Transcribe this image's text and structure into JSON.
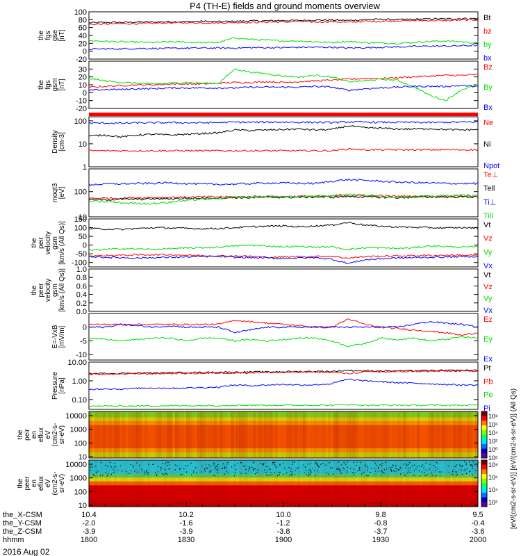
{
  "title": "P4 (TH-E) fields and ground moments overview",
  "date": "2016 Aug 02",
  "xaxis": {
    "tick_labels": [
      "1800",
      "1830",
      "1900",
      "1930",
      "2000"
    ],
    "rows": [
      {
        "label": "the_X-CSM",
        "values": [
          "10.4",
          "10.2",
          "10.0",
          "9.8",
          "9.5"
        ]
      },
      {
        "label": "the_Y-CSM",
        "values": [
          "-2.0",
          "-1.6",
          "-1.2",
          "-0.8",
          "-0.4"
        ]
      },
      {
        "label": "the_Z-CSM",
        "values": [
          "-3.9",
          "-3.9",
          "-3.8",
          "-3.7",
          "-3.6"
        ]
      },
      {
        "label": "hhmm",
        "values": [
          "1800",
          "1830",
          "1900",
          "1930",
          "2000"
        ]
      }
    ]
  },
  "colorbar": {
    "label": "[eV/(cm2-s-sr-eV)] [eV/(cm2-s-sr-eV)] (All Qs)",
    "ion_ticks": [
      "10⁸",
      "10⁶",
      "10⁴",
      "10²",
      "10⁰",
      "10²"
    ],
    "electron_ticks": [
      "10⁸",
      "10⁶",
      "10⁴",
      "10²"
    ]
  },
  "colors": {
    "black": "#000000",
    "red": "#ff0000",
    "green": "#00dd00",
    "blue": "#0000ff"
  },
  "chart_data": [
    {
      "type": "line",
      "ylabel": [
        "the",
        "fgs",
        "gse",
        "[nT]"
      ],
      "ylim": [
        -20,
        100
      ],
      "ticks": [
        100,
        80,
        60,
        40,
        20,
        0,
        -20
      ],
      "series": [
        {
          "name": "Bt",
          "color": "#000000",
          "values": [
            72,
            73,
            73,
            74,
            74,
            75,
            75,
            76,
            75,
            76,
            77,
            77,
            78,
            78,
            79,
            79,
            78,
            80,
            81,
            80,
            81,
            82,
            82,
            83,
            83
          ]
        },
        {
          "name": "bz",
          "color": "#ff0000",
          "values": [
            68,
            69,
            70,
            70,
            71,
            72,
            72,
            72,
            72,
            73,
            73,
            74,
            74,
            75,
            74,
            75,
            73,
            76,
            76,
            77,
            78,
            78,
            78,
            79,
            80
          ]
        },
        {
          "name": "by",
          "color": "#00dd00",
          "values": [
            27,
            25,
            24,
            23,
            22,
            24,
            23,
            22,
            22,
            34,
            30,
            28,
            26,
            26,
            24,
            22,
            25,
            22,
            21,
            20,
            22,
            25,
            26,
            24,
            20
          ]
        },
        {
          "name": "bx",
          "color": "#0000ff",
          "values": [
            5,
            6,
            6,
            7,
            7,
            7,
            8,
            8,
            8,
            8,
            9,
            9,
            9,
            10,
            10,
            10,
            8,
            9,
            10,
            11,
            12,
            13,
            13,
            14,
            15
          ]
        }
      ]
    },
    {
      "type": "line",
      "ylabel": [
        "the",
        "fgs",
        "gsm",
        "[nT]"
      ],
      "ylim": [
        -20,
        40
      ],
      "ticks": [
        30,
        20,
        10,
        0,
        -10,
        -20
      ],
      "series": [
        {
          "name": "Bz",
          "color": "#ff0000",
          "values": [
            7,
            8,
            9,
            10,
            10,
            11,
            11,
            11,
            12,
            13,
            13,
            14,
            13,
            14,
            15,
            16,
            17,
            18,
            18,
            19,
            20,
            21,
            22,
            22,
            23
          ]
        },
        {
          "name": "By",
          "color": "#00dd00",
          "values": [
            18,
            15,
            13,
            12,
            11,
            12,
            13,
            12,
            12,
            30,
            26,
            24,
            21,
            20,
            22,
            20,
            14,
            15,
            17,
            16,
            8,
            -3,
            -10,
            4,
            10
          ]
        },
        {
          "name": "Bx",
          "color": "#0000ff",
          "values": [
            3,
            4,
            4,
            5,
            5,
            6,
            6,
            6,
            6,
            6,
            7,
            7,
            7,
            7,
            8,
            7,
            3,
            5,
            6,
            7,
            8,
            8,
            8,
            9,
            8
          ]
        }
      ]
    },
    {
      "type": "line",
      "ylabel": [
        "Density",
        "[cm-3]"
      ],
      "ylim": [
        1,
        150
      ],
      "scale": "log",
      "ticks": [
        100,
        10,
        1
      ],
      "series": [
        {
          "name": "Ne",
          "color": "#ff0000",
          "values": [
            5,
            5,
            5,
            5,
            5,
            5,
            5,
            5,
            5,
            5,
            5,
            5,
            5,
            5,
            5,
            5,
            6,
            5.5,
            5.5,
            5.5,
            5.5,
            5.5,
            5.5,
            5.5,
            5.5
          ]
        },
        {
          "name": "Ni",
          "color": "#000000",
          "values": [
            22,
            24,
            20,
            24,
            26,
            24,
            26,
            28,
            30,
            40,
            38,
            40,
            42,
            44,
            40,
            42,
            60,
            50,
            48,
            44,
            44,
            46,
            42,
            40,
            42
          ]
        },
        {
          "name": "Npot",
          "color": "#0000ff",
          "values": [
            80,
            80,
            78,
            82,
            82,
            84,
            82,
            82,
            84,
            88,
            86,
            88,
            88,
            86,
            86,
            84,
            90,
            88,
            86,
            86,
            86,
            84,
            86,
            88,
            90
          ]
        }
      ]
    },
    {
      "type": "line",
      "ylabel": [
        "moqt3",
        "[eV]"
      ],
      "ylim": [
        10,
        800
      ],
      "scale": "log",
      "ticks": [
        100,
        10
      ],
      "series": [
        {
          "name": "Te⊥",
          "color": "#ff0000",
          "values": [
            55,
            55,
            56,
            58,
            58,
            60,
            60,
            62,
            62,
            62,
            64,
            64,
            64,
            65,
            65,
            66,
            70,
            68,
            68,
            66,
            65,
            65,
            66,
            67,
            68
          ]
        },
        {
          "name": "Tell",
          "color": "#000000",
          "values": [
            48,
            48,
            50,
            50,
            52,
            52,
            54,
            55,
            56,
            58,
            58,
            60,
            60,
            60,
            62,
            60,
            65,
            62,
            60,
            58,
            60,
            62,
            62,
            62,
            62
          ]
        },
        {
          "name": "Ti⊥",
          "color": "#0000ff",
          "values": [
            190,
            200,
            205,
            210,
            215,
            225,
            210,
            200,
            195,
            200,
            210,
            220,
            220,
            215,
            210,
            260,
            300,
            280,
            260,
            240,
            230,
            220,
            215,
            210,
            210
          ]
        },
        {
          "name": "Till",
          "color": "#00dd00",
          "values": [
            42,
            40,
            36,
            34,
            34,
            38,
            46,
            50,
            55,
            60,
            62,
            65,
            62,
            65,
            66,
            72,
            80,
            72,
            66,
            62,
            64,
            66,
            70,
            72,
            70
          ]
        }
      ]
    },
    {
      "type": "line",
      "ylabel": [
        "the",
        "peir",
        "velocity",
        "gsm",
        "[km/s (All Qs)]"
      ],
      "ylim": [
        -125,
        150
      ],
      "ticks": [
        150,
        100,
        50,
        0,
        -50,
        -100
      ],
      "series": [
        {
          "name": "Vt",
          "color": "#000000",
          "values": [
            95,
            92,
            90,
            95,
            100,
            98,
            96,
            94,
            95,
            100,
            105,
            108,
            110,
            105,
            110,
            115,
            130,
            115,
            108,
            104,
            102,
            100,
            98,
            100,
            98
          ]
        },
        {
          "name": "Vz",
          "color": "#ff0000",
          "values": [
            -62,
            -60,
            -58,
            -56,
            -55,
            -55,
            -58,
            -60,
            -62,
            -62,
            -64,
            -70,
            -68,
            -66,
            -65,
            -64,
            -75,
            -66,
            -64,
            -62,
            -60,
            -60,
            -58,
            -58,
            -58
          ]
        },
        {
          "name": "Vy",
          "color": "#00dd00",
          "values": [
            -30,
            -25,
            -20,
            -22,
            -25,
            -20,
            -18,
            -15,
            -12,
            -5,
            0,
            -5,
            -10,
            -8,
            -12,
            -10,
            -25,
            -15,
            -15,
            -20,
            -15,
            -5,
            -8,
            -12,
            -10
          ]
        },
        {
          "name": "Vx",
          "color": "#0000ff",
          "values": [
            -65,
            -70,
            -72,
            -74,
            -72,
            -70,
            -68,
            -66,
            -65,
            -70,
            -72,
            -74,
            -76,
            -74,
            -72,
            -82,
            -105,
            -85,
            -78,
            -74,
            -72,
            -70,
            -68,
            -66,
            -65
          ]
        }
      ]
    },
    {
      "type": "line",
      "ylabel": [
        "the",
        "peer",
        "velocity",
        "gsm",
        "[km/s (All Qs)]"
      ],
      "ylim": [
        0,
        1.0
      ],
      "ticks": [
        "1.0",
        "0.8",
        "0.6",
        "0.4",
        "0.2",
        "0.0"
      ],
      "series": [
        {
          "name": "Vt",
          "color": "#000000",
          "values": []
        },
        {
          "name": "Vz",
          "color": "#ff0000",
          "values": []
        },
        {
          "name": "Vy",
          "color": "#00dd00",
          "values": []
        },
        {
          "name": "Vx",
          "color": "#0000ff",
          "values": []
        }
      ]
    },
    {
      "type": "line",
      "ylabel": [
        "E=-VxB",
        "[mV/m]"
      ],
      "ylim": [
        -12,
        5
      ],
      "ticks": [
        0,
        -5,
        -10
      ],
      "series": [
        {
          "name": "Ez",
          "color": "#ff0000",
          "values": [
            1,
            1,
            1,
            1,
            1,
            1,
            1,
            1,
            1,
            2.5,
            2,
            1.5,
            1,
            0.5,
            0,
            0,
            3,
            1,
            0,
            -0.5,
            -1,
            -1.5,
            -2,
            -3,
            -2
          ]
        },
        {
          "name": "Ey",
          "color": "#00dd00",
          "values": [
            -4,
            -4.5,
            -5,
            -4.5,
            -4,
            -4,
            -5,
            -4,
            -4,
            -5,
            -4.5,
            -5,
            -4.5,
            -4,
            -4,
            -5,
            -7,
            -6,
            -4,
            -4.5,
            -4,
            -5,
            -4.5,
            -3.5,
            -4
          ]
        },
        {
          "name": "Ex",
          "color": "#0000ff",
          "values": [
            0,
            0,
            1,
            0.5,
            0,
            0.5,
            0,
            0,
            0,
            -2,
            -1,
            0,
            0,
            0,
            0,
            0,
            0,
            0,
            0,
            0,
            1,
            2,
            1.5,
            1,
            0
          ]
        }
      ]
    },
    {
      "type": "line",
      "ylabel": [
        "Pressure",
        "[nPa]"
      ],
      "ylim": [
        0.03,
        10
      ],
      "scale": "log",
      "ticks": [
        "10.00",
        "1.00",
        "0.10"
      ],
      "series": [
        {
          "name": "Pt",
          "color": "#000000",
          "values": [
            2.4,
            2.5,
            2.5,
            2.6,
            2.6,
            2.7,
            2.8,
            2.8,
            2.9,
            2.9,
            3.0,
            3.0,
            3.1,
            3.1,
            3.2,
            3.2,
            3.6,
            3.4,
            3.4,
            3.4,
            3.5,
            3.5,
            3.6,
            3.6,
            3.7
          ]
        },
        {
          "name": "Pb",
          "color": "#ff0000",
          "values": [
            2.2,
            2.3,
            2.3,
            2.4,
            2.4,
            2.5,
            2.5,
            2.5,
            2.6,
            2.6,
            2.7,
            2.8,
            2.8,
            2.9,
            2.9,
            2.9,
            2.4,
            3.0,
            3.0,
            3.1,
            3.2,
            3.2,
            3.3,
            3.3,
            3.4
          ]
        },
        {
          "name": "Pe",
          "color": "#00dd00",
          "values": [
            0.045,
            0.045,
            0.045,
            0.046,
            0.046,
            0.047,
            0.047,
            0.048,
            0.048,
            0.05,
            0.05,
            0.05,
            0.05,
            0.05,
            0.05,
            0.05,
            0.055,
            0.05,
            0.05,
            0.05,
            0.05,
            0.05,
            0.05,
            0.05,
            0.05
          ]
        },
        {
          "name": "Pi",
          "color": "#0000ff",
          "values": [
            0.35,
            0.38,
            0.36,
            0.4,
            0.42,
            0.4,
            0.42,
            0.44,
            0.46,
            0.6,
            0.55,
            0.6,
            0.65,
            0.6,
            0.62,
            0.7,
            1.2,
            1.0,
            0.9,
            0.8,
            0.75,
            0.7,
            0.65,
            0.6,
            0.6
          ]
        }
      ]
    },
    {
      "type": "heatmap",
      "ylabel": [
        "the",
        "peir",
        "en",
        "eflux",
        "eV",
        "(cm2-s-",
        "sr-eV)"
      ],
      "ylim": [
        8,
        20000
      ],
      "scale": "log",
      "ticks": [
        "10000",
        "1000",
        "100",
        "10"
      ]
    },
    {
      "type": "heatmap",
      "ylabel": [
        "the",
        "peer",
        "en",
        "eflux",
        "eV",
        "(cm2-s-",
        "sr-eV)"
      ],
      "ylim": [
        8,
        20000
      ],
      "scale": "log",
      "ticks": [
        "10000",
        "1000",
        "100",
        "10"
      ]
    }
  ]
}
